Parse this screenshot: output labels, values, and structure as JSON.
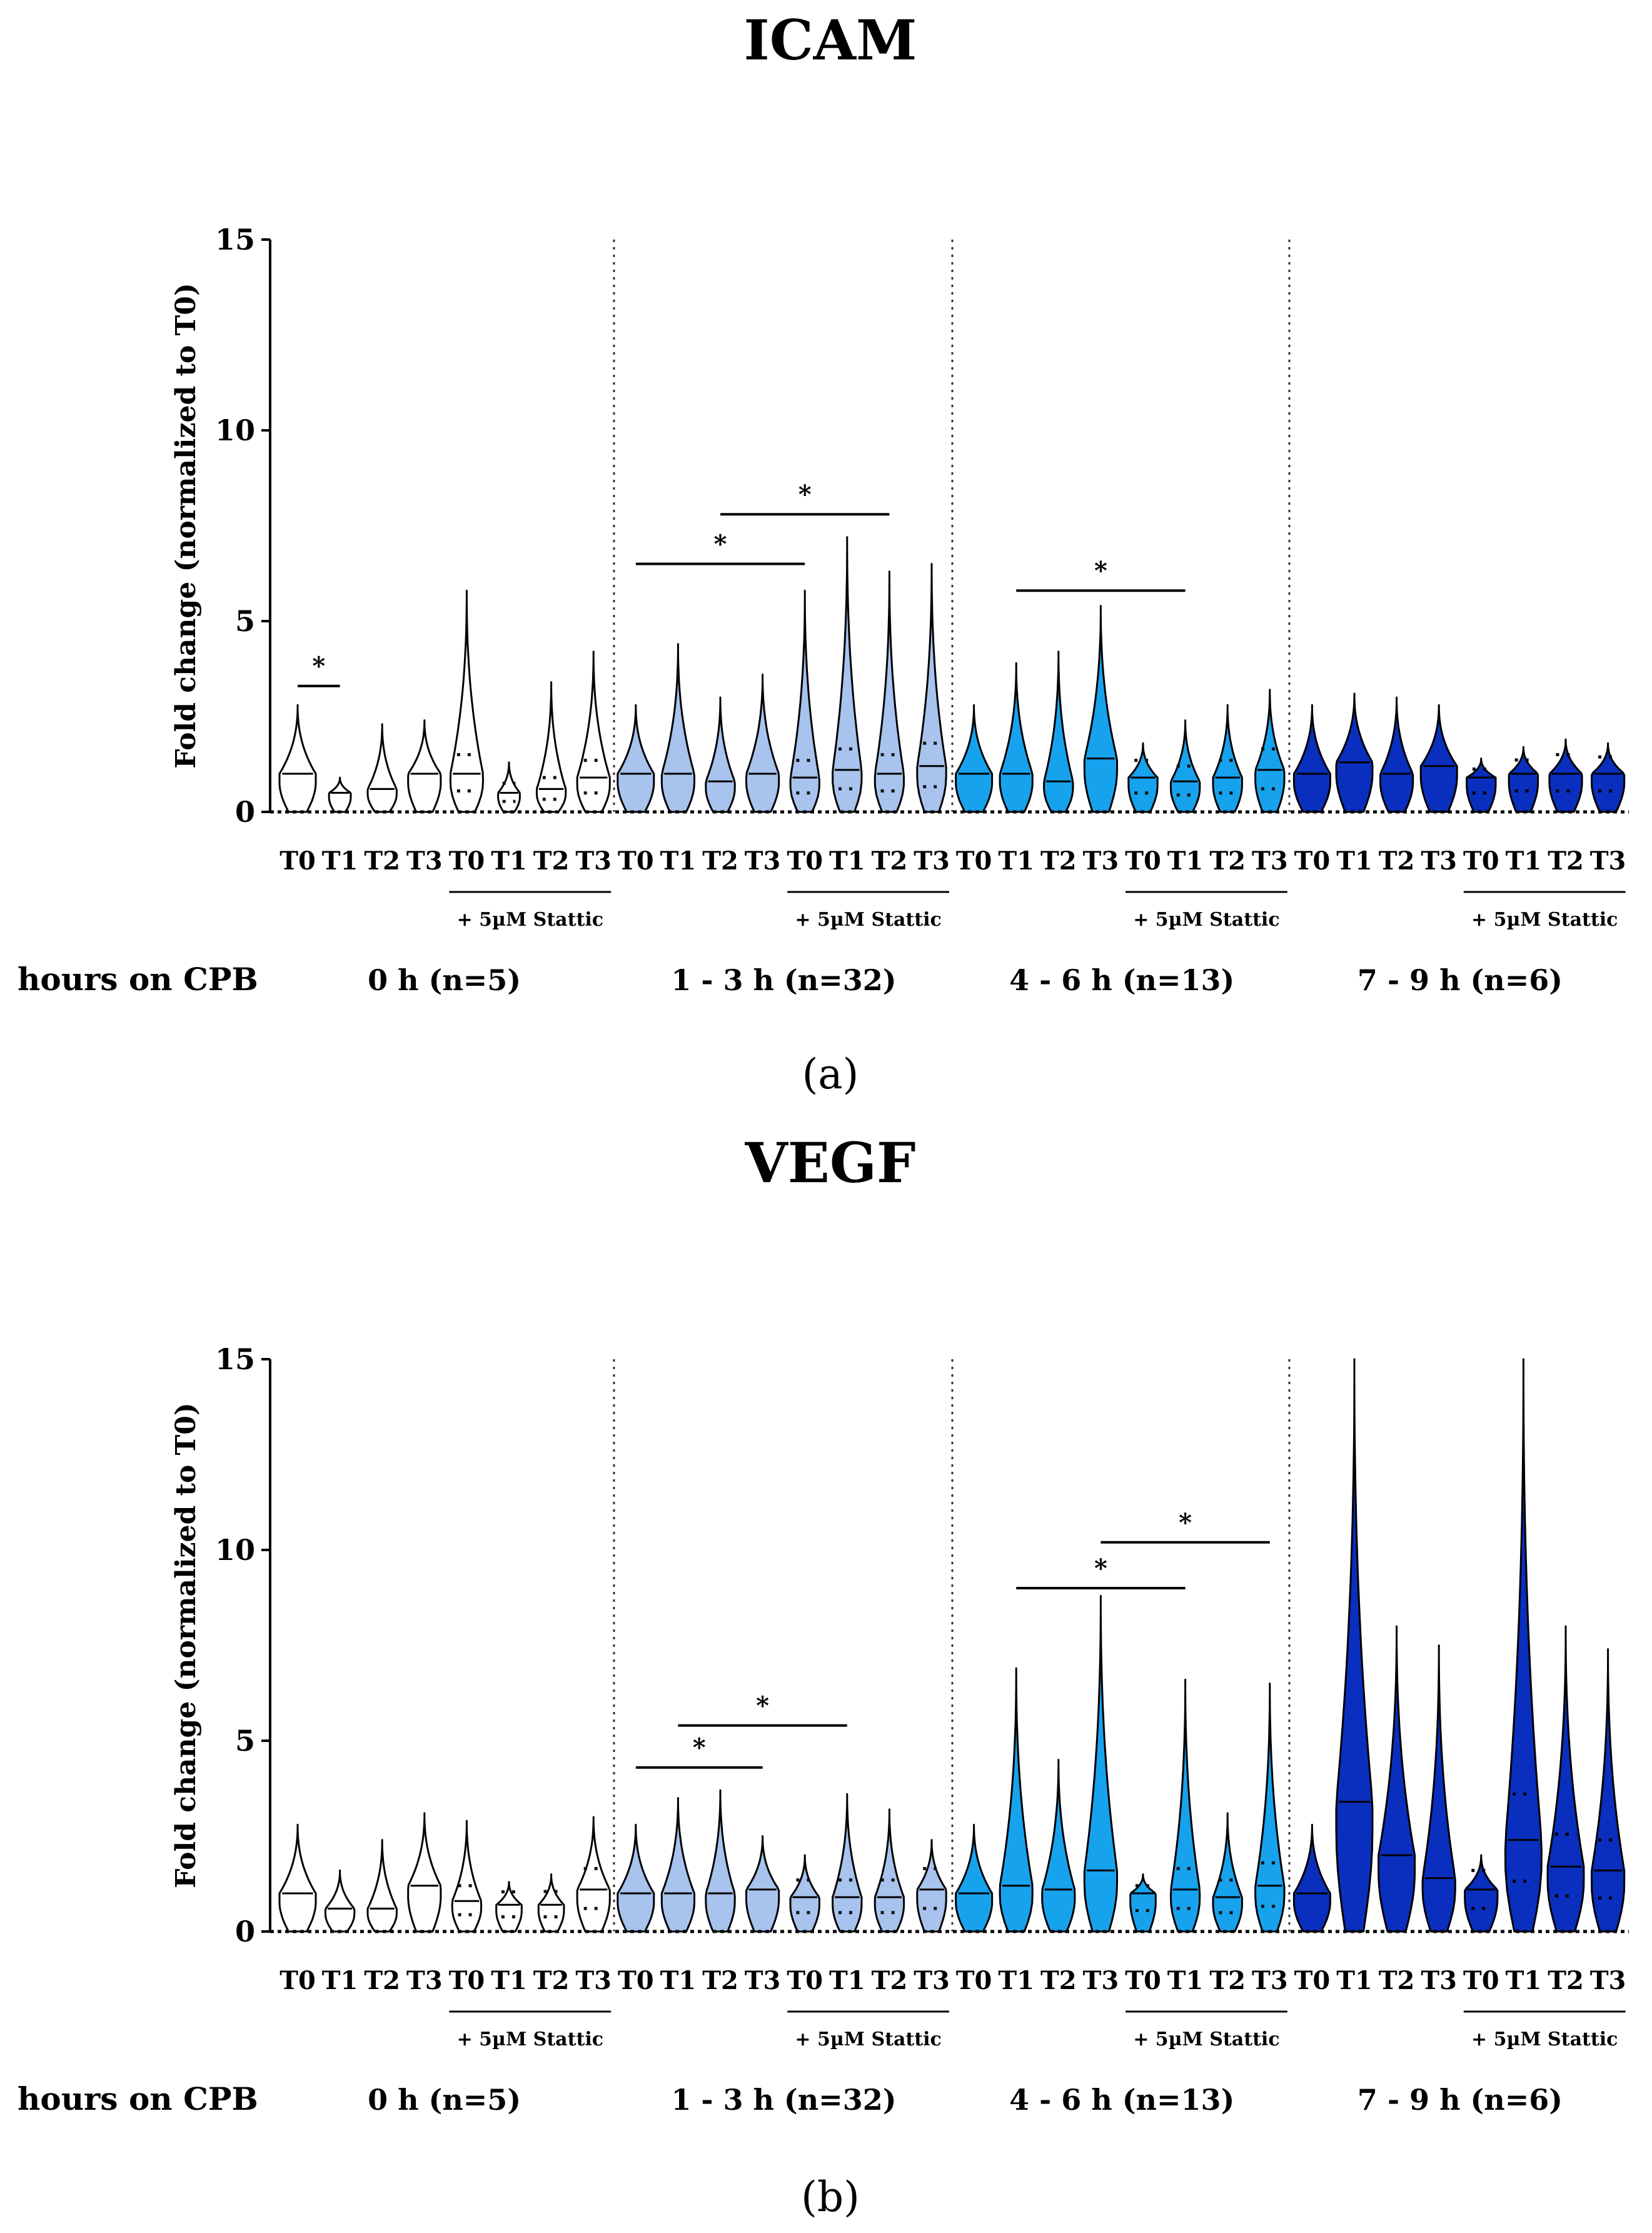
{
  "chart_data": [
    {
      "type": "violin",
      "panel_label": "(a)",
      "title": "ICAM",
      "ylabel": "Fold change (normalized to T0)",
      "ylim": [
        0,
        15
      ],
      "yticks": [
        0,
        5,
        10,
        15
      ],
      "condition_label": "+ 5µM Stattic",
      "hours_label": "hours on CPB",
      "group_colors": [
        "#ffffff",
        "#a7c3ee",
        "#17a2ee",
        "#0a2fbe"
      ],
      "groups": [
        {
          "label": "0 h (n=5)",
          "violins": [
            {
              "tick": "T0",
              "median": 1.0,
              "max": 2.8,
              "width": 1.0
            },
            {
              "tick": "T1",
              "median": 0.5,
              "max": 0.9,
              "width": 0.6
            },
            {
              "tick": "T2",
              "median": 0.6,
              "max": 2.3,
              "width": 0.8
            },
            {
              "tick": "T3",
              "median": 1.0,
              "max": 2.4,
              "width": 0.9
            },
            {
              "tick": "T0",
              "median": 1.0,
              "max": 5.8,
              "width": 0.9
            },
            {
              "tick": "T1",
              "median": 0.5,
              "max": 1.3,
              "width": 0.6
            },
            {
              "tick": "T2",
              "median": 0.6,
              "max": 3.4,
              "width": 0.8
            },
            {
              "tick": "T3",
              "median": 0.9,
              "max": 4.2,
              "width": 0.9
            }
          ]
        },
        {
          "label": "1 - 3 h (n=32)",
          "violins": [
            {
              "tick": "T0",
              "median": 1.0,
              "max": 2.8,
              "width": 1.0
            },
            {
              "tick": "T1",
              "median": 1.0,
              "max": 4.4,
              "width": 0.9
            },
            {
              "tick": "T2",
              "median": 0.8,
              "max": 3.0,
              "width": 0.8
            },
            {
              "tick": "T3",
              "median": 1.0,
              "max": 3.6,
              "width": 0.9
            },
            {
              "tick": "T0",
              "median": 0.9,
              "max": 5.8,
              "width": 0.8
            },
            {
              "tick": "T1",
              "median": 1.1,
              "max": 7.2,
              "width": 0.8
            },
            {
              "tick": "T2",
              "median": 1.0,
              "max": 6.3,
              "width": 0.8
            },
            {
              "tick": "T3",
              "median": 1.2,
              "max": 6.5,
              "width": 0.8
            }
          ]
        },
        {
          "label": "4 - 6 h (n=13)",
          "violins": [
            {
              "tick": "T0",
              "median": 1.0,
              "max": 2.8,
              "width": 1.0
            },
            {
              "tick": "T1",
              "median": 1.0,
              "max": 3.9,
              "width": 0.9
            },
            {
              "tick": "T2",
              "median": 0.8,
              "max": 4.2,
              "width": 0.8
            },
            {
              "tick": "T3",
              "median": 1.4,
              "max": 5.4,
              "width": 0.9
            },
            {
              "tick": "T0",
              "median": 0.9,
              "max": 1.8,
              "width": 0.8
            },
            {
              "tick": "T1",
              "median": 0.8,
              "max": 2.4,
              "width": 0.8
            },
            {
              "tick": "T2",
              "median": 0.9,
              "max": 2.8,
              "width": 0.8
            },
            {
              "tick": "T3",
              "median": 1.1,
              "max": 3.2,
              "width": 0.8
            }
          ]
        },
        {
          "label": "7 - 9 h (n=6)",
          "violins": [
            {
              "tick": "T0",
              "median": 1.0,
              "max": 2.8,
              "width": 1.0
            },
            {
              "tick": "T1",
              "median": 1.3,
              "max": 3.1,
              "width": 1.0
            },
            {
              "tick": "T2",
              "median": 1.0,
              "max": 3.0,
              "width": 0.9
            },
            {
              "tick": "T3",
              "median": 1.2,
              "max": 2.8,
              "width": 1.0
            },
            {
              "tick": "T0",
              "median": 0.9,
              "max": 1.4,
              "width": 0.8
            },
            {
              "tick": "T1",
              "median": 1.0,
              "max": 1.7,
              "width": 0.8
            },
            {
              "tick": "T2",
              "median": 1.0,
              "max": 1.9,
              "width": 0.9
            },
            {
              "tick": "T3",
              "median": 1.0,
              "max": 1.8,
              "width": 0.9
            }
          ]
        }
      ],
      "significance": [
        {
          "from": [
            0,
            0
          ],
          "to": [
            0,
            1
          ],
          "y": 3.3,
          "label": "*"
        },
        {
          "from": [
            1,
            0
          ],
          "to": [
            1,
            4
          ],
          "y": 6.5,
          "label": "*"
        },
        {
          "from": [
            1,
            2
          ],
          "to": [
            1,
            6
          ],
          "y": 7.8,
          "label": "*"
        },
        {
          "from": [
            2,
            1
          ],
          "to": [
            2,
            5
          ],
          "y": 5.8,
          "label": "*"
        }
      ]
    },
    {
      "type": "violin",
      "panel_label": "(b)",
      "title": "VEGF",
      "ylabel": "Fold change (normalized to T0)",
      "ylim": [
        0,
        15
      ],
      "yticks": [
        0,
        5,
        10,
        15
      ],
      "condition_label": "+ 5µM Stattic",
      "hours_label": "hours on CPB",
      "group_colors": [
        "#ffffff",
        "#a7c3ee",
        "#17a2ee",
        "#0a2fbe"
      ],
      "groups": [
        {
          "label": "0 h (n=5)",
          "violins": [
            {
              "tick": "T0",
              "median": 1.0,
              "max": 2.8,
              "width": 1.0
            },
            {
              "tick": "T1",
              "median": 0.6,
              "max": 1.6,
              "width": 0.8
            },
            {
              "tick": "T2",
              "median": 0.6,
              "max": 2.4,
              "width": 0.8
            },
            {
              "tick": "T3",
              "median": 1.2,
              "max": 3.1,
              "width": 0.9
            },
            {
              "tick": "T0",
              "median": 0.8,
              "max": 2.9,
              "width": 0.8
            },
            {
              "tick": "T1",
              "median": 0.7,
              "max": 1.3,
              "width": 0.7
            },
            {
              "tick": "T2",
              "median": 0.7,
              "max": 1.5,
              "width": 0.7
            },
            {
              "tick": "T3",
              "median": 1.1,
              "max": 3.0,
              "width": 0.9
            }
          ]
        },
        {
          "label": "1 - 3 h (n=32)",
          "violins": [
            {
              "tick": "T0",
              "median": 1.0,
              "max": 2.8,
              "width": 1.0
            },
            {
              "tick": "T1",
              "median": 1.0,
              "max": 3.5,
              "width": 0.9
            },
            {
              "tick": "T2",
              "median": 1.0,
              "max": 3.7,
              "width": 0.8
            },
            {
              "tick": "T3",
              "median": 1.1,
              "max": 2.5,
              "width": 0.9
            },
            {
              "tick": "T0",
              "median": 0.9,
              "max": 2.0,
              "width": 0.8
            },
            {
              "tick": "T1",
              "median": 0.9,
              "max": 3.6,
              "width": 0.8
            },
            {
              "tick": "T2",
              "median": 0.9,
              "max": 3.2,
              "width": 0.8
            },
            {
              "tick": "T3",
              "median": 1.1,
              "max": 2.4,
              "width": 0.8
            }
          ]
        },
        {
          "label": "4 - 6 h (n=13)",
          "violins": [
            {
              "tick": "T0",
              "median": 1.0,
              "max": 2.8,
              "width": 1.0
            },
            {
              "tick": "T1",
              "median": 1.2,
              "max": 6.9,
              "width": 0.9
            },
            {
              "tick": "T2",
              "median": 1.1,
              "max": 4.5,
              "width": 0.9
            },
            {
              "tick": "T3",
              "median": 1.6,
              "max": 8.8,
              "width": 0.9
            },
            {
              "tick": "T0",
              "median": 1.0,
              "max": 1.5,
              "width": 0.7
            },
            {
              "tick": "T1",
              "median": 1.1,
              "max": 6.6,
              "width": 0.8
            },
            {
              "tick": "T2",
              "median": 0.9,
              "max": 3.1,
              "width": 0.8
            },
            {
              "tick": "T3",
              "median": 1.2,
              "max": 6.5,
              "width": 0.8
            }
          ]
        },
        {
          "label": "7 - 9 h (n=6)",
          "violins": [
            {
              "tick": "T0",
              "median": 1.0,
              "max": 2.8,
              "width": 1.0
            },
            {
              "tick": "T1",
              "median": 3.4,
              "max": 15.0,
              "width": 1.0
            },
            {
              "tick": "T2",
              "median": 2.0,
              "max": 8.0,
              "width": 1.0
            },
            {
              "tick": "T3",
              "median": 1.4,
              "max": 7.5,
              "width": 0.9
            },
            {
              "tick": "T0",
              "median": 1.1,
              "max": 2.0,
              "width": 0.9
            },
            {
              "tick": "T1",
              "median": 2.4,
              "max": 15.0,
              "width": 1.0
            },
            {
              "tick": "T2",
              "median": 1.7,
              "max": 8.0,
              "width": 1.0
            },
            {
              "tick": "T3",
              "median": 1.6,
              "max": 7.4,
              "width": 0.9
            }
          ]
        }
      ],
      "significance": [
        {
          "from": [
            1,
            0
          ],
          "to": [
            1,
            3
          ],
          "y": 4.3,
          "label": "*"
        },
        {
          "from": [
            1,
            1
          ],
          "to": [
            1,
            5
          ],
          "y": 5.4,
          "label": "*"
        },
        {
          "from": [
            2,
            1
          ],
          "to": [
            2,
            5
          ],
          "y": 9.0,
          "label": "*"
        },
        {
          "from": [
            2,
            3
          ],
          "to": [
            2,
            7
          ],
          "y": 10.2,
          "label": "*"
        }
      ]
    }
  ]
}
